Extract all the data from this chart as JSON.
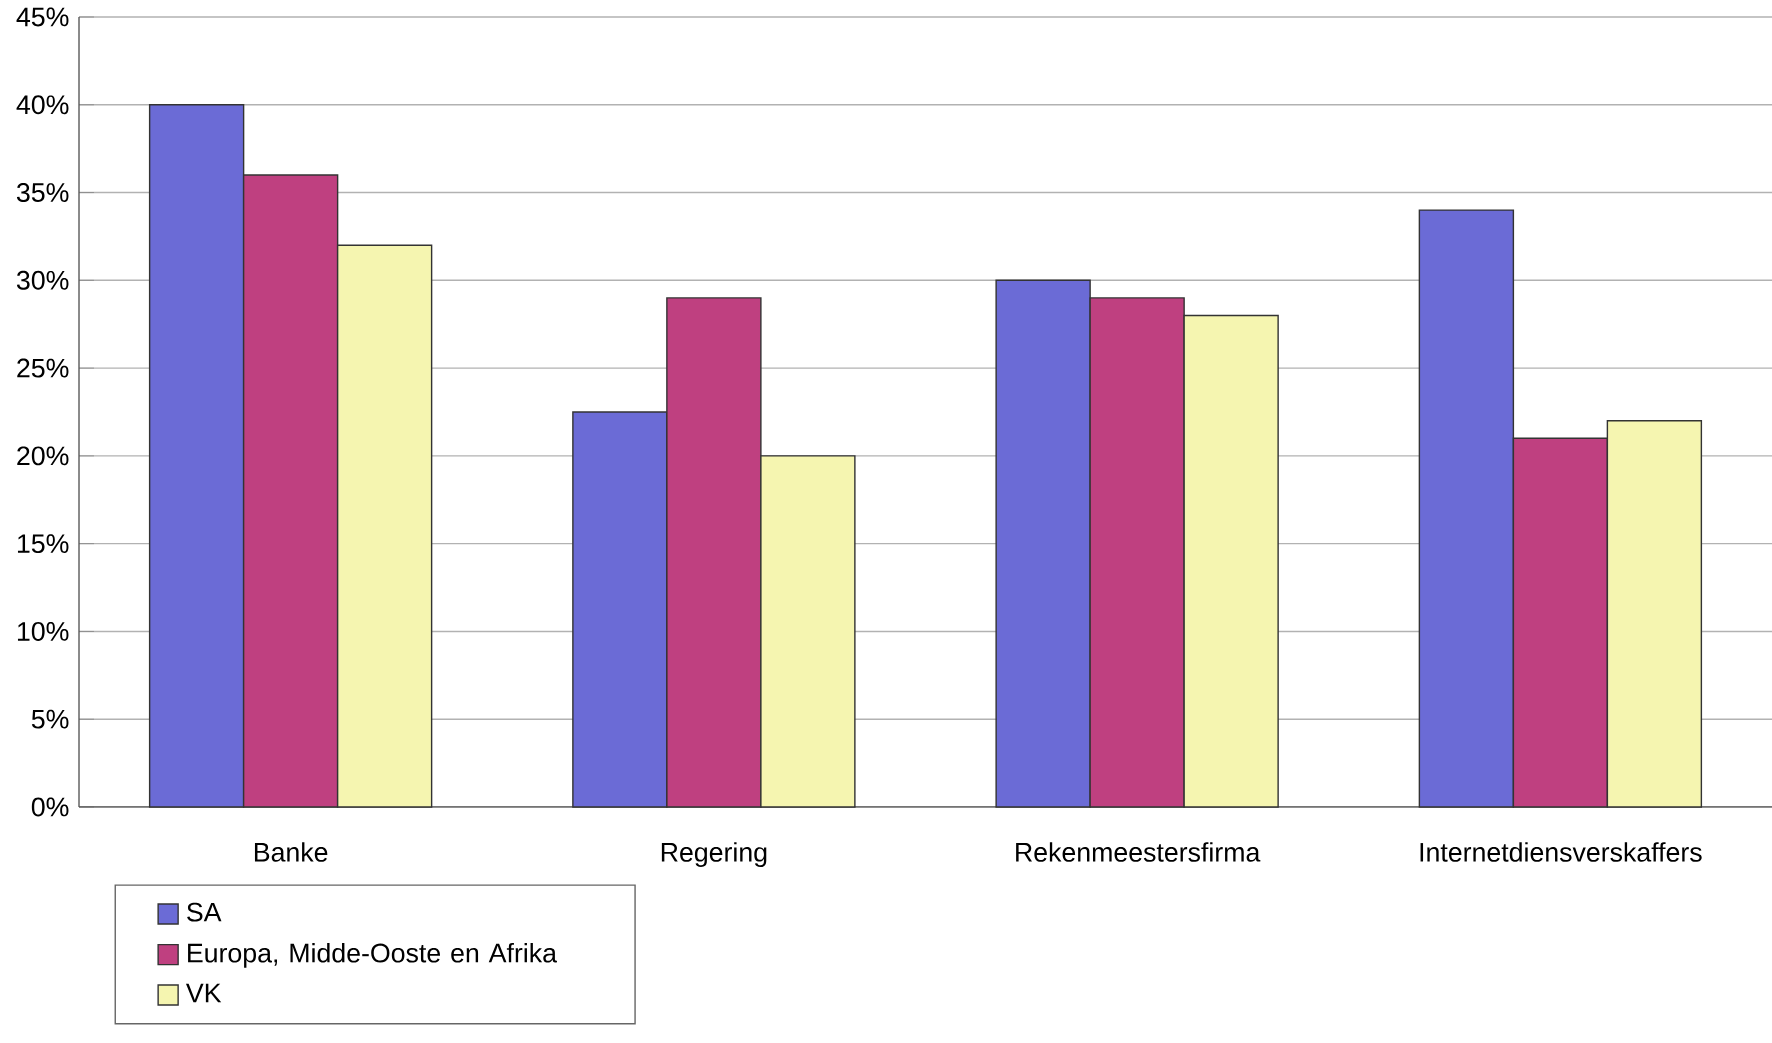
{
  "chart_data": {
    "type": "bar",
    "categories": [
      "Banke",
      "Regering",
      "Rekenmeestersfirma",
      "Internetdiensverskaffers"
    ],
    "series": [
      {
        "name": "SA",
        "color": "#6b6bd6",
        "values": [
          40,
          22.5,
          30,
          34
        ]
      },
      {
        "name": "Europa, Midde-Ooste en Afrika",
        "color": "#bf4080",
        "values": [
          36,
          29,
          29,
          21
        ]
      },
      {
        "name": "VK",
        "color": "#f5f5b0",
        "values": [
          32,
          20,
          28,
          22
        ]
      }
    ],
    "ylim": [
      0,
      45
    ],
    "yticks": [
      {
        "value": 0,
        "label": "0%"
      },
      {
        "value": 5,
        "label": "5%"
      },
      {
        "value": 10,
        "label": "10%"
      },
      {
        "value": 15,
        "label": "15%"
      },
      {
        "value": 20,
        "label": "20%"
      },
      {
        "value": 25,
        "label": "25%"
      },
      {
        "value": 30,
        "label": "30%"
      },
      {
        "value": 35,
        "label": "35%"
      },
      {
        "value": 40,
        "label": "40%"
      },
      {
        "value": 45,
        "label": "45%"
      }
    ],
    "grid": "y",
    "legend": "bottom left"
  }
}
